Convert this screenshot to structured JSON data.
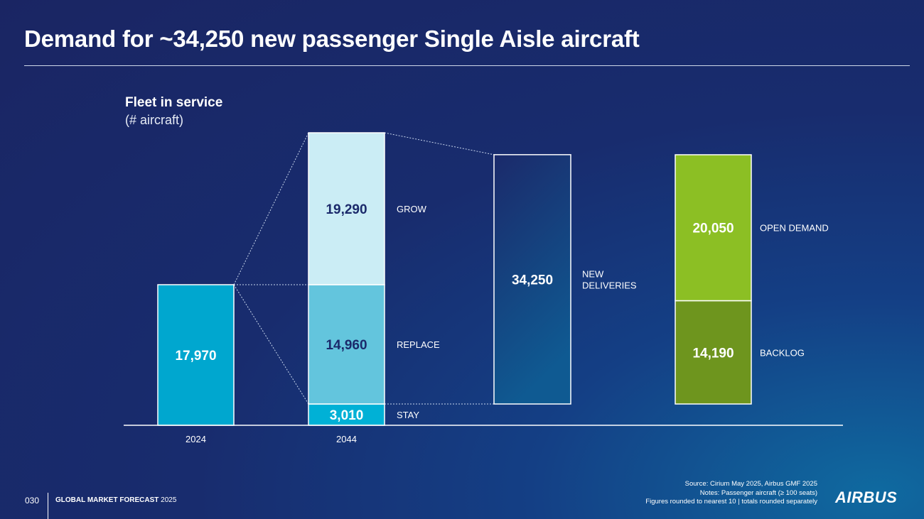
{
  "title": "Demand for ~34,250 new passenger Single Aisle aircraft",
  "chart_data": {
    "type": "bar",
    "title": "Fleet in service",
    "subtitle": "(# aircraft)",
    "categories": [
      "2024",
      "2044"
    ],
    "bars": [
      {
        "id": "fleet-2024",
        "category": "2024",
        "segments": [
          {
            "label": "",
            "value": 17970,
            "display": "17,970",
            "color": "#00a7cf"
          }
        ]
      },
      {
        "id": "fleet-2044",
        "category": "2044",
        "segments": [
          {
            "label": "STAY",
            "value": 3010,
            "display": "3,010",
            "color": "#00b1d6"
          },
          {
            "label": "REPLACE",
            "value": 14960,
            "display": "14,960",
            "color": "#63c5dd"
          },
          {
            "label": "GROW",
            "value": 19290,
            "display": "19,290",
            "color": "#cbedf5"
          }
        ]
      },
      {
        "id": "new-deliveries",
        "category": "",
        "segments": [
          {
            "label": "NEW DELIVERIES",
            "value": 34250,
            "display": "34,250",
            "color": "outline"
          }
        ]
      },
      {
        "id": "demand-split",
        "category": "",
        "segments": [
          {
            "label": "BACKLOG",
            "value": 14190,
            "display": "14,190",
            "color": "#6e951e"
          },
          {
            "label": "OPEN DEMAND",
            "value": 20050,
            "display": "20,050",
            "color": "#8cbf24"
          }
        ]
      }
    ]
  },
  "footer": {
    "page_number": "030",
    "brand_bold": "GLOBAL MARKET FORECAST",
    "brand_year": "2025",
    "source_lines": [
      "Source: Cirium May 2025, Airbus GMF 2025",
      "Notes: Passenger aircraft (≥ 100 seats)",
      "Figures rounded to nearest 10 | totals rounded separately"
    ],
    "logo_text": "AIRBUS"
  }
}
